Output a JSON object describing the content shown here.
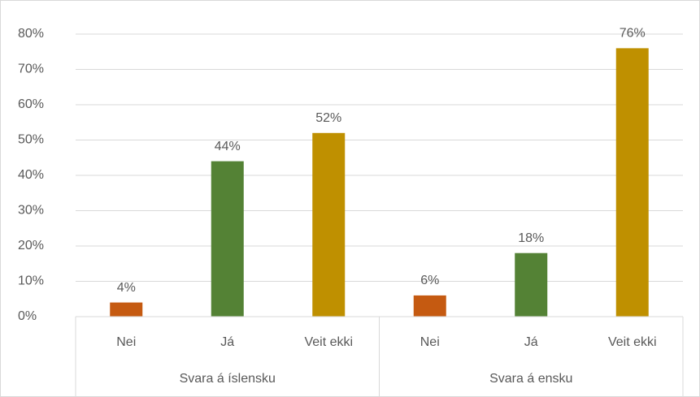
{
  "chart_data": {
    "type": "bar",
    "groups": [
      "Svara á íslensku",
      "Svara á ensku"
    ],
    "categories": [
      "Nei",
      "Já",
      "Veit ekki",
      "Nei",
      "Já",
      "Veit ekki"
    ],
    "values": [
      4,
      44,
      52,
      6,
      18,
      76
    ],
    "value_labels": [
      "4%",
      "44%",
      "52%",
      "6%",
      "18%",
      "76%"
    ],
    "colors": [
      "#C55A11",
      "#548235",
      "#BF9000",
      "#C55A11",
      "#548235",
      "#BF9000"
    ],
    "ylim": [
      0,
      80
    ],
    "yticks": [
      {
        "value": 0,
        "label": "0%"
      },
      {
        "value": 10,
        "label": "10%"
      },
      {
        "value": 20,
        "label": "20%"
      },
      {
        "value": 30,
        "label": "30%"
      },
      {
        "value": 40,
        "label": "40%"
      },
      {
        "value": 50,
        "label": "50%"
      },
      {
        "value": 60,
        "label": "60%"
      },
      {
        "value": 70,
        "label": "70%"
      },
      {
        "value": 80,
        "label": "80%"
      }
    ],
    "grid": true
  }
}
